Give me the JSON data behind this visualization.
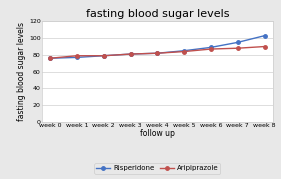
{
  "title": "fasting blood sugar levels",
  "xlabel": "follow up",
  "ylabel": "fasting blood sugar levels",
  "x_labels": [
    "week 0",
    "week 1",
    "week 2",
    "week 3",
    "week 4",
    "week 5",
    "week 6",
    "week 7",
    "week 8"
  ],
  "risperidone": [
    76,
    77,
    79,
    81,
    82,
    85,
    89,
    95,
    103
  ],
  "aripiprazole": [
    76,
    79,
    79,
    81,
    82,
    84,
    87,
    88,
    90
  ],
  "risperidone_color": "#4472C4",
  "aripiprazole_color": "#C0504D",
  "ylim": [
    0,
    120
  ],
  "yticks": [
    0,
    20,
    40,
    60,
    80,
    100,
    120
  ],
  "outer_bg": "#e8e8e8",
  "plot_bg": "#ffffff",
  "legend_labels": [
    "Risperidone",
    "Aripiprazole"
  ],
  "title_fontsize": 8,
  "axis_label_fontsize": 5.5,
  "tick_fontsize": 4.5,
  "legend_fontsize": 5,
  "linewidth": 1.0,
  "marker": "o",
  "markersize": 2.5
}
